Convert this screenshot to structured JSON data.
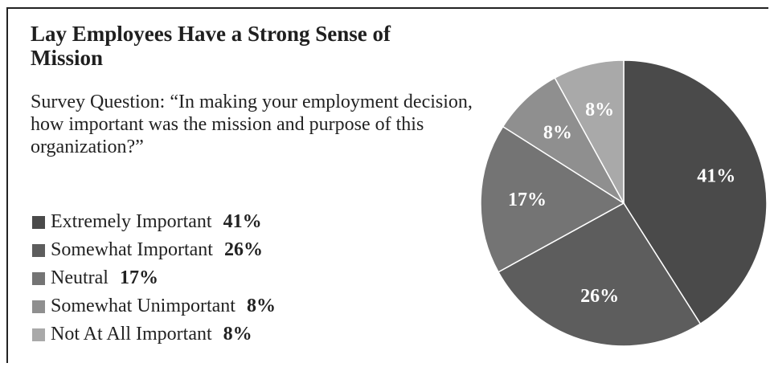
{
  "chart_data": {
    "type": "pie",
    "title": "Lay Employees Have a Strong Sense of Mission",
    "subtitle": "Survey Question: “In making your employment decision, how important was the mission and purpose of this organization?”",
    "legend_position": "left",
    "slices": [
      {
        "label": "Extremely Important",
        "value": 41,
        "value_label": "41%",
        "color": "#4a4a4a"
      },
      {
        "label": "Somewhat Important",
        "value": 26,
        "value_label": "26%",
        "color": "#5d5d5d"
      },
      {
        "label": "Neutral",
        "value": 17,
        "value_label": "17%",
        "color": "#747474"
      },
      {
        "label": "Somewhat Unimportant",
        "value": 8,
        "value_label": "8%",
        "color": "#8f8f8f"
      },
      {
        "label": "Not At All Important",
        "value": 8,
        "value_label": "8%",
        "color": "#a9a9a9"
      }
    ]
  }
}
